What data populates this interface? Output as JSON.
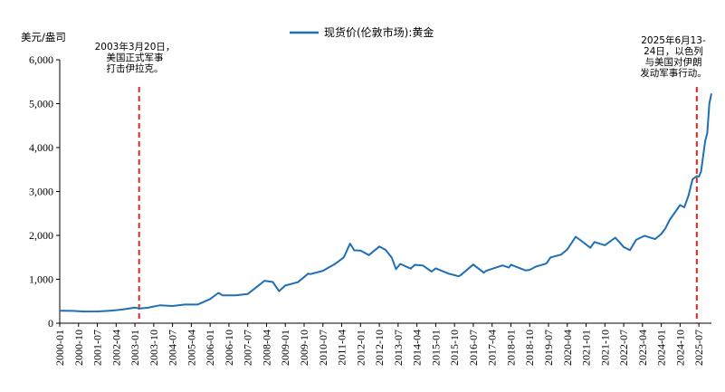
{
  "chart_data": {
    "type": "line",
    "title": "",
    "ylabel": "美元/盎司",
    "xlabel": "",
    "ylim": [
      0,
      6000
    ],
    "grid": false,
    "legend_position": "top-center",
    "y_ticks": [
      "0",
      "1,000",
      "2,000",
      "3,000",
      "4,000",
      "5,000",
      "6,000"
    ],
    "y_tick_values": [
      0,
      1000,
      2000,
      3000,
      4000,
      5000,
      6000
    ],
    "x_tick_labels": [
      "2000-01",
      "2000-10",
      "2001-07",
      "2002-04",
      "2003-01",
      "2003-10",
      "2004-07",
      "2005-04",
      "2006-01",
      "2006-10",
      "2007-07",
      "2008-04",
      "2009-01",
      "2009-10",
      "2010-07",
      "2011-04",
      "2012-01",
      "2012-10",
      "2013-07",
      "2014-04",
      "2015-01",
      "2015-10",
      "2016-07",
      "2017-04",
      "2018-01",
      "2018-10",
      "2019-07",
      "2020-04",
      "2021-01",
      "2021-10",
      "2022-07",
      "2023-04",
      "2024-01",
      "2024-10",
      "2025-07"
    ],
    "series": [
      {
        "name": "现货价(伦敦市场):黄金",
        "color": "#1f6fb5",
        "points": [
          [
            "2000-01",
            285
          ],
          [
            "2000-07",
            280
          ],
          [
            "2001-01",
            265
          ],
          [
            "2001-07",
            268
          ],
          [
            "2002-01",
            282
          ],
          [
            "2002-07",
            312
          ],
          [
            "2003-01",
            356
          ],
          [
            "2003-03",
            335
          ],
          [
            "2003-07",
            350
          ],
          [
            "2004-01",
            408
          ],
          [
            "2004-07",
            392
          ],
          [
            "2005-01",
            424
          ],
          [
            "2005-07",
            425
          ],
          [
            "2006-01",
            550
          ],
          [
            "2006-05",
            690
          ],
          [
            "2006-07",
            633
          ],
          [
            "2007-01",
            632
          ],
          [
            "2007-07",
            665
          ],
          [
            "2008-01",
            889
          ],
          [
            "2008-03",
            968
          ],
          [
            "2008-07",
            939
          ],
          [
            "2008-10",
            730
          ],
          [
            "2009-01",
            858
          ],
          [
            "2009-07",
            934
          ],
          [
            "2009-12",
            1130
          ],
          [
            "2010-01",
            1118
          ],
          [
            "2010-07",
            1193
          ],
          [
            "2011-01",
            1356
          ],
          [
            "2011-05",
            1500
          ],
          [
            "2011-08",
            1813
          ],
          [
            "2011-10",
            1660
          ],
          [
            "2012-01",
            1656
          ],
          [
            "2012-05",
            1550
          ],
          [
            "2012-10",
            1746
          ],
          [
            "2013-01",
            1670
          ],
          [
            "2013-04",
            1490
          ],
          [
            "2013-06",
            1230
          ],
          [
            "2013-08",
            1350
          ],
          [
            "2014-01",
            1244
          ],
          [
            "2014-03",
            1330
          ],
          [
            "2014-07",
            1311
          ],
          [
            "2014-11",
            1176
          ],
          [
            "2015-01",
            1250
          ],
          [
            "2015-07",
            1131
          ],
          [
            "2015-12",
            1068
          ],
          [
            "2016-01",
            1097
          ],
          [
            "2016-07",
            1336
          ],
          [
            "2016-12",
            1150
          ],
          [
            "2017-01",
            1192
          ],
          [
            "2017-09",
            1316
          ],
          [
            "2017-12",
            1265
          ],
          [
            "2018-01",
            1331
          ],
          [
            "2018-08",
            1202
          ],
          [
            "2018-10",
            1215
          ],
          [
            "2019-01",
            1291
          ],
          [
            "2019-06",
            1359
          ],
          [
            "2019-08",
            1500
          ],
          [
            "2020-01",
            1560
          ],
          [
            "2020-04",
            1680
          ],
          [
            "2020-08",
            1970
          ],
          [
            "2020-11",
            1866
          ],
          [
            "2021-03",
            1718
          ],
          [
            "2021-05",
            1850
          ],
          [
            "2021-10",
            1776
          ],
          [
            "2022-03",
            1948
          ],
          [
            "2022-07",
            1733
          ],
          [
            "2022-10",
            1664
          ],
          [
            "2023-01",
            1898
          ],
          [
            "2023-05",
            1992
          ],
          [
            "2023-10",
            1916
          ],
          [
            "2024-01",
            2034
          ],
          [
            "2024-03",
            2160
          ],
          [
            "2024-05",
            2350
          ],
          [
            "2024-10",
            2690
          ],
          [
            "2024-12",
            2640
          ],
          [
            "2025-02",
            2900
          ],
          [
            "2025-04",
            3280
          ],
          [
            "2025-06",
            3350
          ],
          [
            "2025-07",
            3340
          ],
          [
            "2025-08",
            3450
          ],
          [
            "2025-09",
            3800
          ],
          [
            "2025-10",
            4150
          ],
          [
            "2025-11",
            4330
          ],
          [
            "2025-12",
            5000
          ],
          [
            "2026-01",
            5230
          ]
        ]
      }
    ],
    "annotations": [
      {
        "date": "2003-03",
        "lines": [
          "2003年3月20日，",
          "美国正式军事",
          "打击伊拉克。"
        ],
        "color": "#e8241f"
      },
      {
        "date": "2025-06",
        "lines": [
          "2025年6月13-",
          "24日，以色列",
          "与美国对伊朗",
          "发动军事行动。"
        ],
        "color": "#e8241f"
      }
    ]
  }
}
